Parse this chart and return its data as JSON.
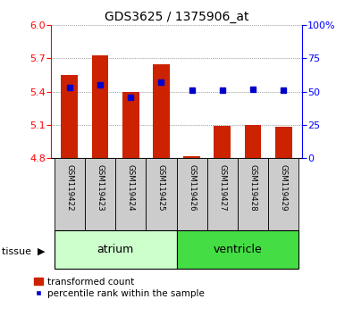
{
  "title": "GDS3625 / 1375906_at",
  "samples": [
    "GSM119422",
    "GSM119423",
    "GSM119424",
    "GSM119425",
    "GSM119426",
    "GSM119427",
    "GSM119428",
    "GSM119429"
  ],
  "bar_values": [
    5.55,
    5.73,
    5.4,
    5.65,
    4.82,
    5.09,
    5.1,
    5.08
  ],
  "percentile_values": [
    53,
    55,
    46,
    57,
    51,
    51,
    52,
    51
  ],
  "bar_color": "#cc2200",
  "percentile_color": "#0000cc",
  "baseline": 4.8,
  "ylim_left": [
    4.8,
    6.0
  ],
  "ylim_right": [
    0,
    100
  ],
  "yticks_left": [
    4.8,
    5.1,
    5.4,
    5.7,
    6.0
  ],
  "yticks_right": [
    0,
    25,
    50,
    75,
    100
  ],
  "ytick_labels_right": [
    "0",
    "25",
    "50",
    "75",
    "100%"
  ],
  "tissue_groups": [
    {
      "label": "atrium",
      "samples": [
        0,
        1,
        2,
        3
      ],
      "color": "#ccffcc"
    },
    {
      "label": "ventricle",
      "samples": [
        4,
        5,
        6,
        7
      ],
      "color": "#44dd44"
    }
  ],
  "tissue_label": "tissue",
  "legend_bar_label": "transformed count",
  "legend_perc_label": "percentile rank within the sample",
  "bar_width": 0.55,
  "grid_color": "#555555",
  "tick_label_gray_bg": "#cccccc",
  "title_fontsize": 10,
  "tick_fontsize": 8,
  "tissue_fontsize": 9,
  "legend_fontsize": 7.5
}
